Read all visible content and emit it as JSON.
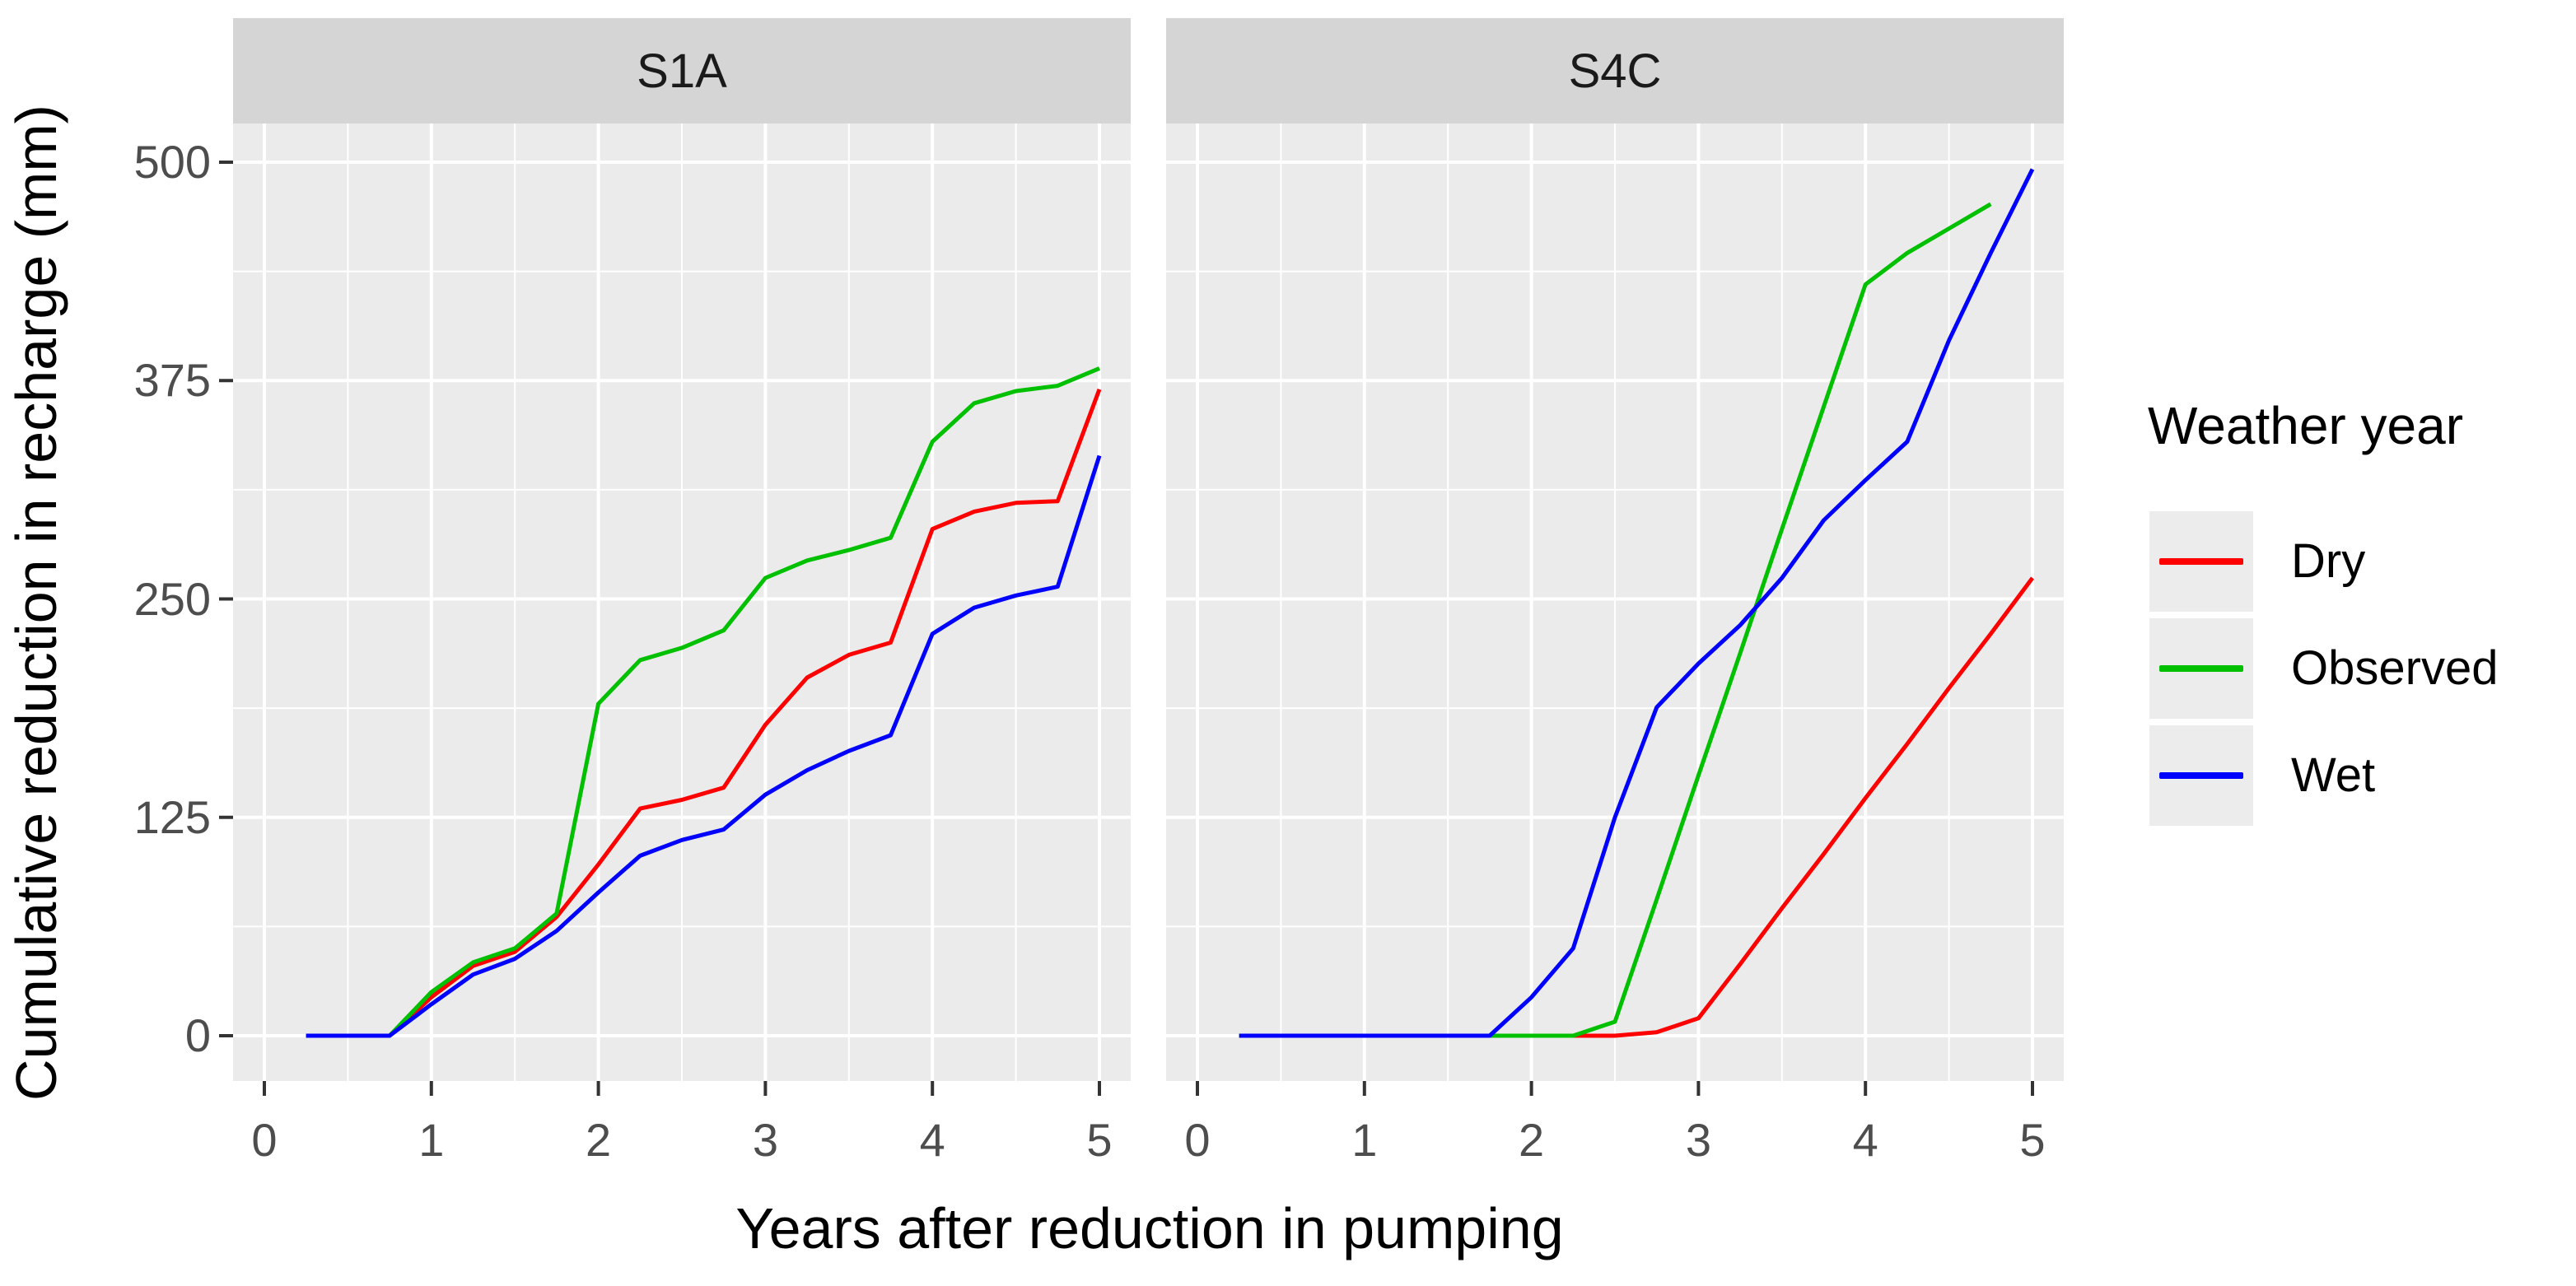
{
  "figure": {
    "background": "#FFFFFF"
  },
  "colors": {
    "panel_background": "#EBEBEB",
    "strip_background": "#D5D5D5",
    "legend_key_background": "#ECECEC",
    "grid": "#FFFFFF",
    "tick_mark": "#333333",
    "tick_text": "#4D4D4D",
    "title_text": "#000000",
    "dry": "#FF0000",
    "observed": "#00C000",
    "wet": "#0000FF"
  },
  "legend": {
    "title": "Weather year",
    "items": [
      {
        "label": "Dry",
        "color": "#FF0000"
      },
      {
        "label": "Observed",
        "color": "#00C000"
      },
      {
        "label": "Wet",
        "color": "#0000FF"
      }
    ]
  },
  "chart_data": {
    "type": "line",
    "title": "",
    "xlabel": "Years after reduction in pumping",
    "ylabel": "Cumulative reduction in recharge (mm)",
    "x_ticks": [
      0,
      1,
      2,
      3,
      4,
      5
    ],
    "y_ticks": [
      0,
      125,
      250,
      375,
      500
    ],
    "x_minor_ticks": [
      0.5,
      1.5,
      2.5,
      3.5,
      4.5
    ],
    "y_minor_ticks": [
      62.5,
      187.5,
      312.5,
      437.5
    ],
    "xlim": [
      -0.19,
      5.19
    ],
    "ylim": [
      -26,
      522
    ],
    "grid": {
      "major": true,
      "minor": true,
      "color": "#FFFFFF"
    },
    "legend_position": "right",
    "facet_variable_values": [
      "S1A",
      "S4C"
    ],
    "panels": [
      {
        "title": "S1A",
        "series": [
          {
            "name": "Dry",
            "color": "#FF0000",
            "x": [
              0.25,
              0.75,
              1.0,
              1.25,
              1.5,
              1.75,
              2.0,
              2.25,
              2.5,
              2.75,
              3.0,
              3.25,
              3.5,
              3.75,
              4.0,
              4.25,
              4.5,
              4.75,
              5.0
            ],
            "y": [
              0,
              0,
              22,
              40,
              48,
              68,
              98,
              130,
              135,
              142,
              178,
              205,
              218,
              225,
              290,
              300,
              305,
              306,
              370
            ]
          },
          {
            "name": "Observed",
            "color": "#00C000",
            "x": [
              0.25,
              0.75,
              1.0,
              1.25,
              1.5,
              1.75,
              2.0,
              2.25,
              2.5,
              2.75,
              3.0,
              3.25,
              3.5,
              3.75,
              4.0,
              4.25,
              4.5,
              4.75,
              5.0
            ],
            "y": [
              0,
              0,
              25,
              42,
              50,
              70,
              190,
              215,
              222,
              232,
              262,
              272,
              278,
              285,
              340,
              362,
              369,
              372,
              382
            ]
          },
          {
            "name": "Wet",
            "color": "#0000FF",
            "x": [
              0.25,
              0.75,
              1.0,
              1.25,
              1.5,
              1.75,
              2.0,
              2.25,
              2.5,
              2.75,
              3.0,
              3.25,
              3.5,
              3.75,
              4.0,
              4.25,
              4.5,
              4.75,
              5.0
            ],
            "y": [
              0,
              0,
              18,
              35,
              44,
              60,
              82,
              103,
              112,
              118,
              138,
              152,
              163,
              172,
              230,
              245,
              252,
              257,
              332
            ]
          }
        ]
      },
      {
        "title": "S4C",
        "series": [
          {
            "name": "Dry",
            "color": "#FF0000",
            "x": [
              0.25,
              0.75,
              1.0,
              1.25,
              1.5,
              1.75,
              2.0,
              2.25,
              2.5,
              2.75,
              3.0,
              3.25,
              3.5,
              3.75,
              4.0,
              4.25,
              4.5,
              4.75,
              5.0
            ],
            "y": [
              0,
              0,
              0,
              0,
              0,
              0,
              0,
              0,
              0,
              2,
              10,
              41,
              73,
              104,
              136,
              167,
              199,
              230,
              262
            ]
          },
          {
            "name": "Observed",
            "color": "#00C000",
            "x": [
              0.25,
              0.75,
              1.0,
              1.25,
              1.5,
              1.75,
              2.0,
              2.25,
              2.5,
              2.75,
              3.0,
              3.25,
              3.5,
              3.75,
              4.0,
              4.25,
              4.5,
              4.75
            ],
            "y": [
              0,
              0,
              0,
              0,
              0,
              0,
              0,
              0,
              8,
              78,
              149,
              219,
              290,
              360,
              430,
              448,
              462,
              476
            ]
          },
          {
            "name": "Wet",
            "color": "#0000FF",
            "x": [
              0.25,
              0.75,
              1.0,
              1.25,
              1.5,
              1.75,
              2.0,
              2.25,
              2.5,
              2.75,
              3.0,
              3.25,
              3.5,
              3.75,
              4.0,
              4.25,
              4.5,
              4.75,
              5.0
            ],
            "y": [
              0,
              0,
              0,
              0,
              0,
              0,
              22,
              50,
              125,
              188,
              213,
              235,
              262,
              295,
              318,
              340,
              398,
              448,
              496
            ]
          }
        ]
      }
    ]
  }
}
